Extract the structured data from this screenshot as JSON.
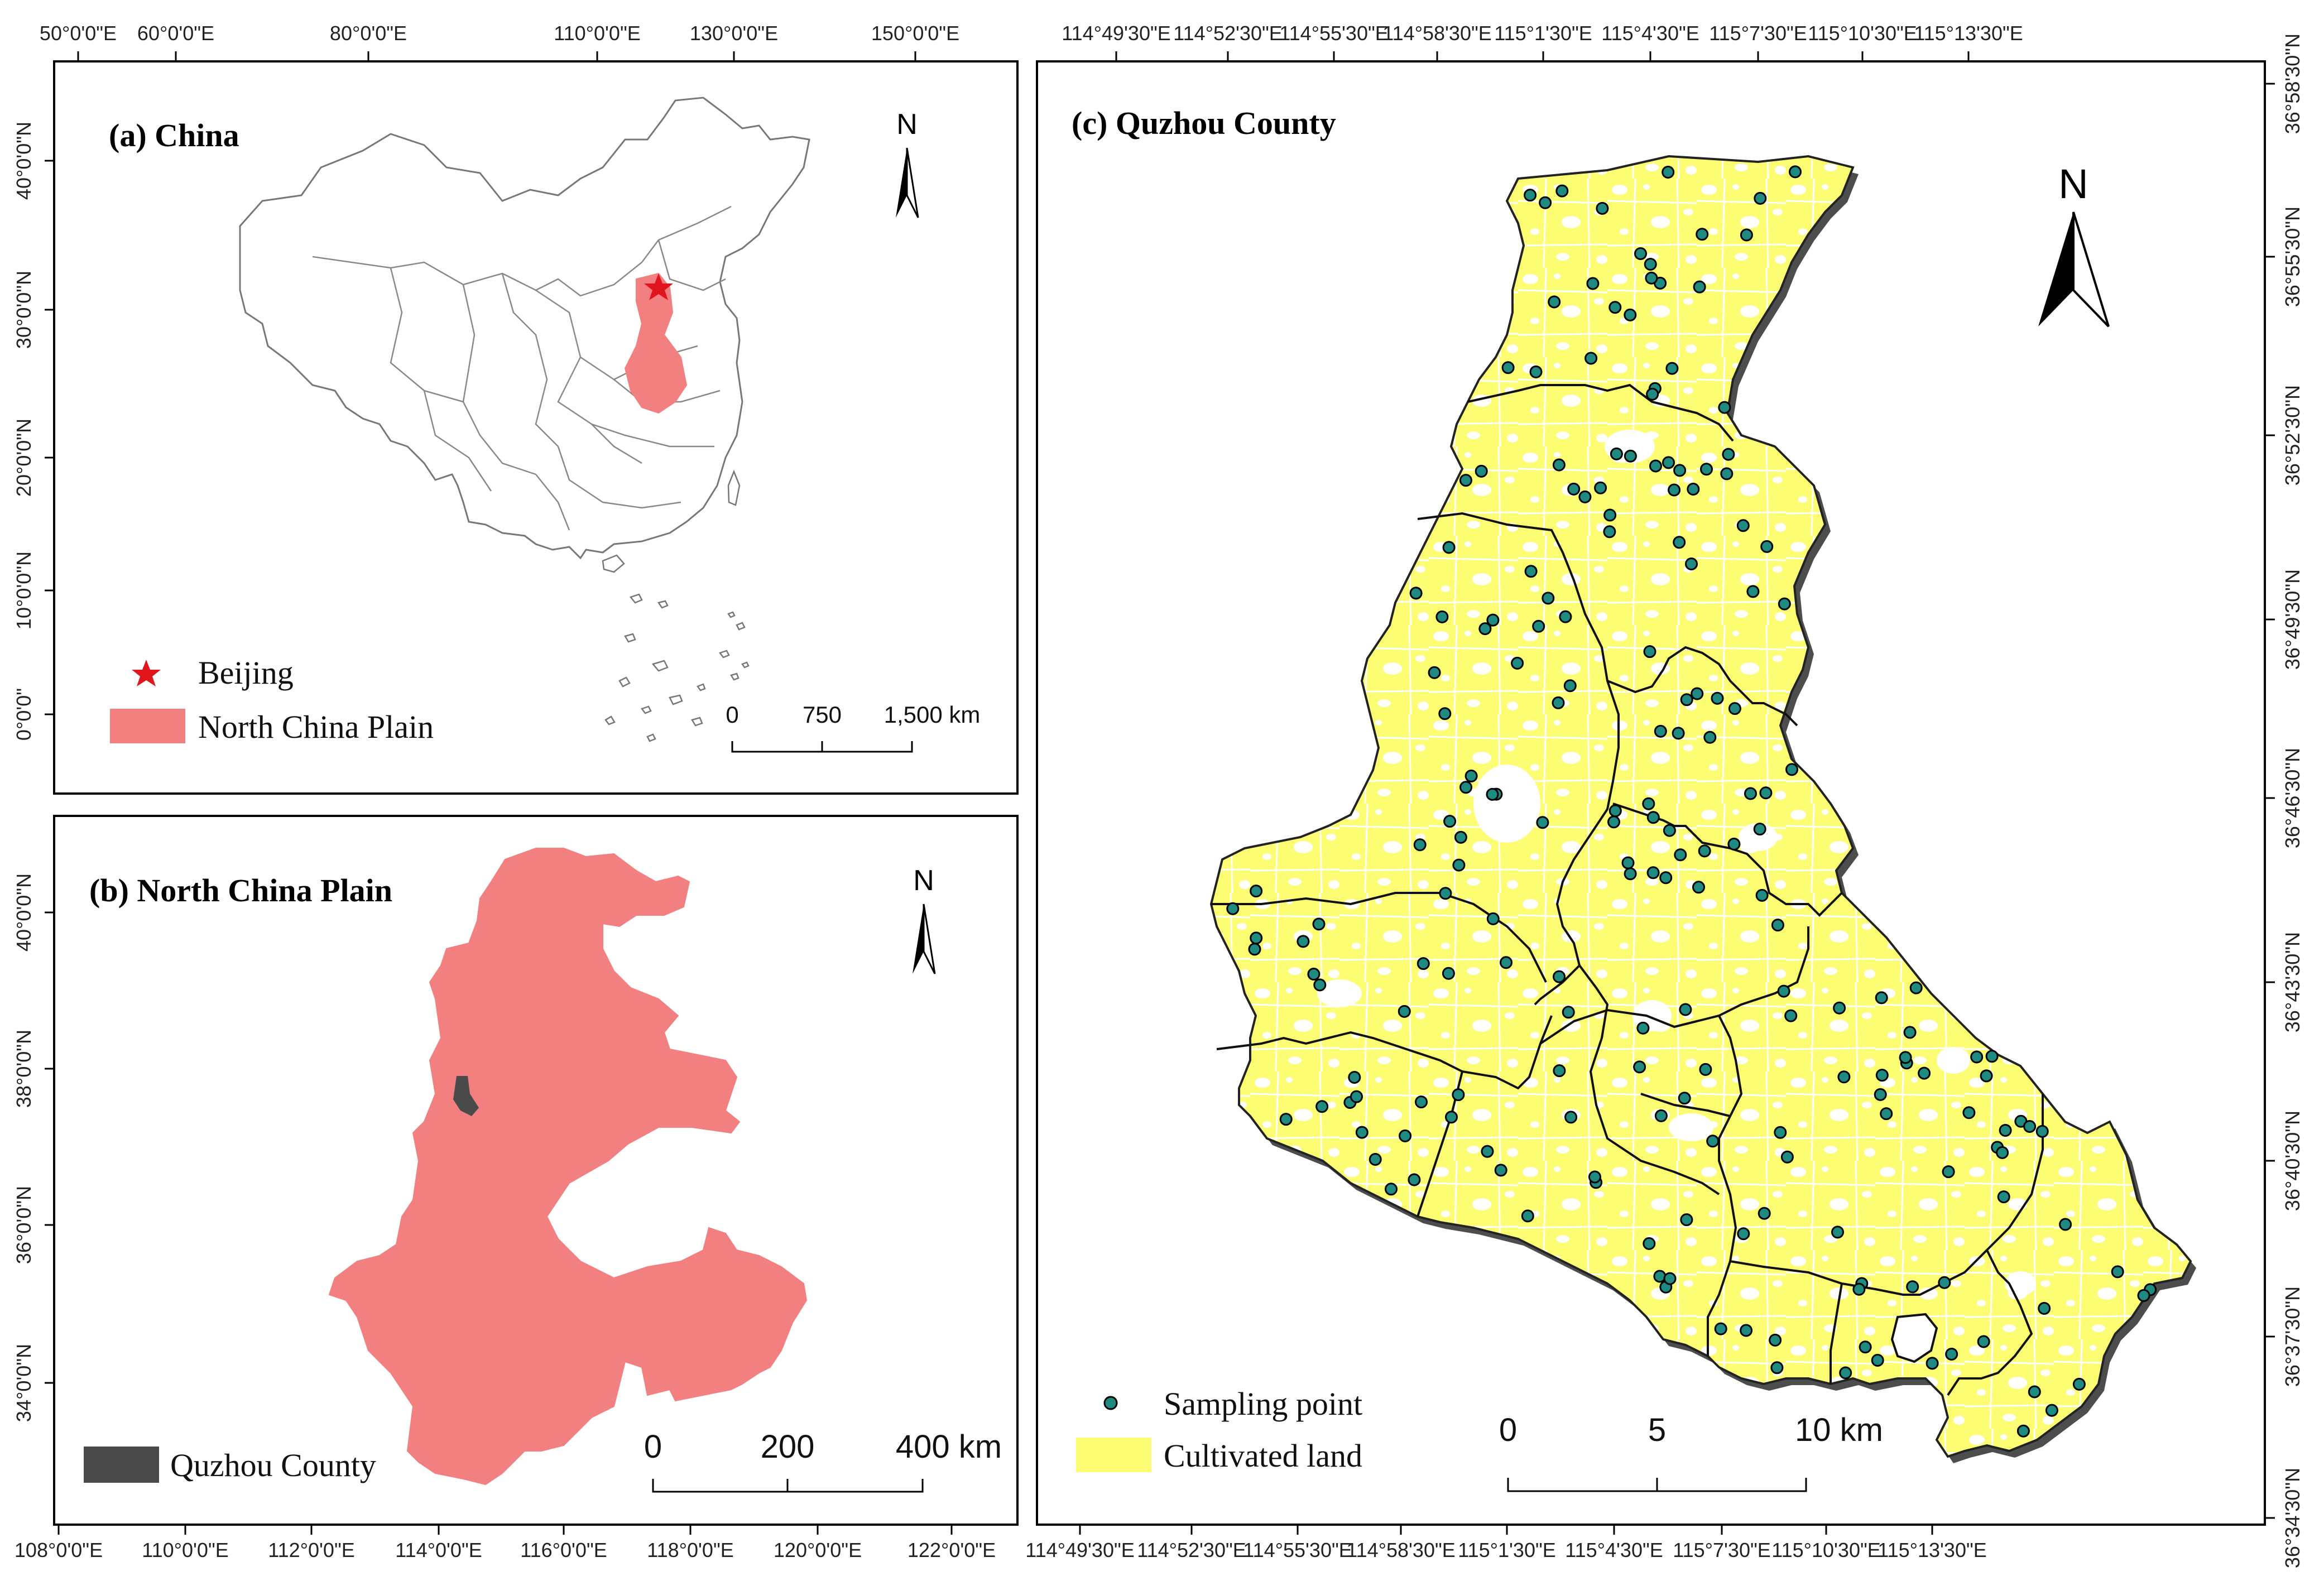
{
  "panels": {
    "a": {
      "title": "(a) China",
      "top_ticks": [
        "50°0'0\"E",
        "60°0'0\"E",
        "80°0'0\"E",
        "110°0'0\"E",
        "130°0'0\"E",
        "150°0'0\"E"
      ],
      "left_ticks": [
        "40°0'0\"N",
        "30°0'0\"N",
        "20°0'0\"N",
        "10°0'0\"N",
        "0°0'0\""
      ],
      "north_label": "N",
      "scale_labels": [
        "0",
        "750",
        "1,500 km"
      ],
      "legend": [
        {
          "symbol": "star",
          "label": "Beijing",
          "color": "#e0161c"
        },
        {
          "symbol": "rect",
          "label": "North China Plain",
          "color": "#f28080"
        }
      ]
    },
    "b": {
      "title": "(b) North China Plain",
      "bottom_ticks": [
        "108°0'0\"E",
        "110°0'0\"E",
        "112°0'0\"E",
        "114°0'0\"E",
        "116°0'0\"E",
        "118°0'0\"E",
        "120°0'0\"E",
        "122°0'0\"E"
      ],
      "left_ticks": [
        "40°0'0\"N",
        "38°0'0\"N",
        "36°0'0\"N",
        "34°0'0\"N"
      ],
      "north_label": "N",
      "scale_labels": [
        "0",
        "200",
        "400 km"
      ],
      "legend": [
        {
          "symbol": "rect",
          "label": "Quzhou County",
          "color": "#4a4a4a"
        }
      ],
      "plain_color": "#f28080"
    },
    "c": {
      "title": "(c) Quzhou County",
      "top_ticks": [
        "114°49'30\"E",
        "114°52'30\"E",
        "114°55'30\"E",
        "114°58'30\"E",
        "115°1'30\"E",
        "115°4'30\"E",
        "115°7'30\"E",
        "115°10'30\"E",
        "115°13'30\"E"
      ],
      "bottom_ticks": [
        "114°49'30\"E",
        "114°52'30\"E",
        "114°55'30\"E",
        "114°58'30\"E",
        "115°1'30\"E",
        "115°4'30\"E",
        "115°7'30\"E",
        "115°10'30\"E",
        "115°13'30\"E"
      ],
      "right_ticks": [
        "36°58'30\"N",
        "36°55'30\"N",
        "36°52'30\"N",
        "36°49'30\"N",
        "36°46'30\"N",
        "36°43'30\"N",
        "36°40'30\"N",
        "36°37'30\"N",
        "36°34'30\"N"
      ],
      "north_label": "N",
      "scale_labels": [
        "0",
        "5",
        "10 km"
      ],
      "legend": [
        {
          "symbol": "dot",
          "label": "Sampling point",
          "color": "#1f8a80"
        },
        {
          "symbol": "rect",
          "label": "Cultivated land",
          "color": "#fdfd73"
        }
      ],
      "sampling_point_count": 200
    }
  },
  "colors": {
    "plain": "#f28080",
    "beijing": "#e0161c",
    "quzhou": "#4a4a4a",
    "cultivated": "#fdfd73",
    "sampling_point": "#1f8a80",
    "china_outline": "#777777"
  }
}
